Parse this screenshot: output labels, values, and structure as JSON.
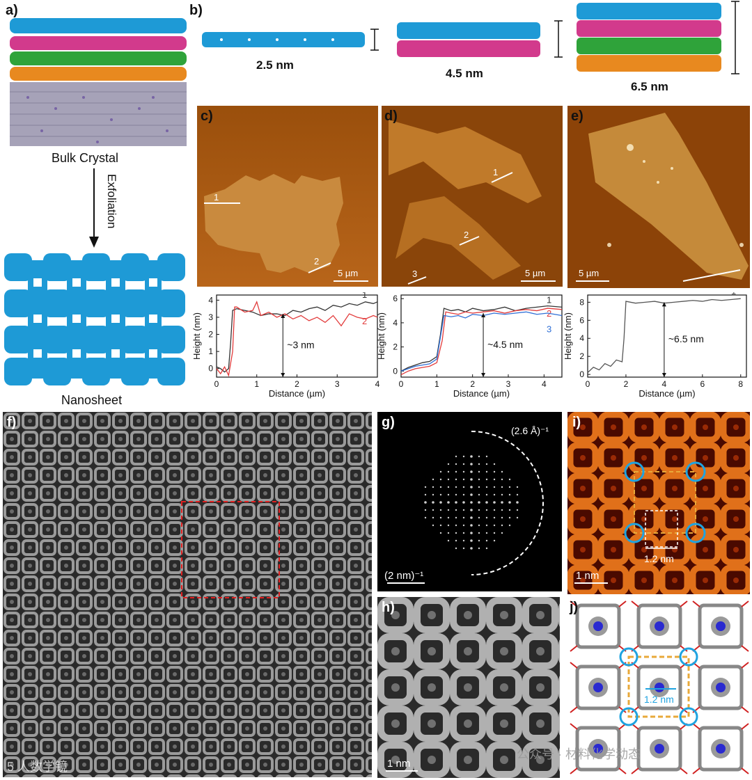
{
  "panels": {
    "a": "a)",
    "b": "b)",
    "c": "c)",
    "d": "d)",
    "e": "e)",
    "f": "f)",
    "g": "g)",
    "h": "h)",
    "i": "i)",
    "j": "j)"
  },
  "panel_a": {
    "bulk_label": "Bulk Crystal",
    "arrow_label": "Exfoliation",
    "nanosheet_label": "Nanosheet"
  },
  "panel_b": {
    "thickness_1": "2.5 nm",
    "thickness_2": "4.5 nm",
    "thickness_3": "6.5 nm"
  },
  "colors": {
    "blue": "#1e9ad6",
    "magenta": "#d23a8c",
    "green": "#2fa33a",
    "orange": "#e8891f",
    "red_line": "#e23b3b",
    "blue_line": "#2f6fd6",
    "circle": "#1fa3e0",
    "dash_yellow": "#e8a93a"
  },
  "afm": {
    "c": {
      "scale": "5 µm",
      "line1": "1",
      "line2": "2"
    },
    "d": {
      "scale": "5 µm",
      "line1": "1",
      "line2": "2",
      "line3": "3"
    },
    "e": {
      "scale": "5 µm"
    }
  },
  "chart_data": [
    {
      "type": "line",
      "panel": "c",
      "xlabel": "Distance (µm)",
      "ylabel": "Height (nm)",
      "xlim": [
        0,
        4
      ],
      "ylim": [
        -0.5,
        4.3
      ],
      "xticks": [
        "0",
        "1",
        "2",
        "3",
        "4"
      ],
      "yticks": [
        "0",
        "1",
        "2",
        "3",
        "4"
      ],
      "annotation": "~3 nm",
      "series": [
        {
          "name": "1",
          "color": "#333333",
          "x": [
            0,
            0.1,
            0.2,
            0.3,
            0.35,
            0.4,
            0.5,
            0.7,
            0.9,
            1.1,
            1.3,
            1.5,
            1.7,
            1.9,
            2.1,
            2.3,
            2.5,
            2.7,
            2.9,
            3.1,
            3.3,
            3.5,
            3.7,
            3.9,
            4.0
          ],
          "y": [
            0.1,
            0.0,
            -0.2,
            0.0,
            1.5,
            3.4,
            3.5,
            3.4,
            3.3,
            3.1,
            3.2,
            3.2,
            3.1,
            3.4,
            3.3,
            3.5,
            3.6,
            3.4,
            3.7,
            3.6,
            3.8,
            3.7,
            3.9,
            3.8,
            3.9
          ]
        },
        {
          "name": "2",
          "color": "#e23b3b",
          "x": [
            0,
            0.1,
            0.2,
            0.3,
            0.4,
            0.45,
            0.5,
            0.7,
            0.9,
            1.0,
            1.1,
            1.3,
            1.5,
            1.7,
            1.9,
            2.1,
            2.3,
            2.5,
            2.7,
            2.9,
            3.1,
            3.3,
            3.5,
            3.7,
            3.9,
            4.0
          ],
          "y": [
            0.0,
            -0.3,
            0.1,
            -0.4,
            1.0,
            3.6,
            3.6,
            3.3,
            3.4,
            3.9,
            3.1,
            3.3,
            3.0,
            3.2,
            2.9,
            3.1,
            2.8,
            3.0,
            2.7,
            3.1,
            2.5,
            3.2,
            3.0,
            2.9,
            3.1,
            3.0
          ]
        }
      ],
      "series_labels": [
        "1",
        "2"
      ]
    },
    {
      "type": "line",
      "panel": "d",
      "xlabel": "Distance (µm)",
      "ylabel": "Height (nm)",
      "xlim": [
        0,
        4.5
      ],
      "ylim": [
        -0.5,
        6.3
      ],
      "xticks": [
        "0",
        "1",
        "2",
        "3",
        "4"
      ],
      "yticks": [
        "0",
        "2",
        "4",
        "6"
      ],
      "annotation": "~4.5 nm",
      "series": [
        {
          "name": "1",
          "color": "#333333",
          "x": [
            0,
            0.2,
            0.4,
            0.6,
            0.8,
            1.0,
            1.1,
            1.2,
            1.4,
            1.6,
            1.8,
            2.0,
            2.3,
            2.6,
            2.9,
            3.2,
            3.5,
            3.8,
            4.1,
            4.5
          ],
          "y": [
            0.0,
            0.3,
            0.5,
            0.7,
            0.8,
            1.2,
            3.0,
            5.2,
            5.0,
            5.1,
            4.9,
            5.2,
            5.0,
            5.1,
            5.3,
            5.0,
            5.2,
            5.3,
            5.4,
            5.3
          ]
        },
        {
          "name": "2",
          "color": "#e23b3b",
          "x": [
            0,
            0.2,
            0.4,
            0.6,
            0.8,
            1.0,
            1.15,
            1.25,
            1.4,
            1.6,
            1.8,
            2.0,
            2.3,
            2.6,
            2.9,
            3.2,
            3.5,
            3.8,
            4.1,
            4.5
          ],
          "y": [
            -0.3,
            0.0,
            0.2,
            0.3,
            0.4,
            0.7,
            2.5,
            4.9,
            4.8,
            4.7,
            4.9,
            4.8,
            4.9,
            5.0,
            4.8,
            5.0,
            5.1,
            5.0,
            5.2,
            5.1
          ]
        },
        {
          "name": "3",
          "color": "#2f6fd6",
          "x": [
            0,
            0.2,
            0.4,
            0.6,
            0.8,
            1.0,
            1.1,
            1.2,
            1.4,
            1.6,
            1.8,
            2.0,
            2.3,
            2.6,
            2.9,
            3.2,
            3.5,
            3.8,
            4.1,
            4.5
          ],
          "y": [
            0.0,
            0.2,
            0.4,
            0.5,
            0.6,
            1.0,
            2.8,
            4.6,
            4.5,
            4.6,
            4.4,
            4.7,
            4.6,
            4.8,
            4.7,
            4.8,
            4.9,
            4.7,
            4.8,
            4.6
          ]
        }
      ],
      "series_labels": [
        "1",
        "2",
        "3"
      ]
    },
    {
      "type": "line",
      "panel": "e",
      "xlabel": "Distance (µm)",
      "ylabel": "Height (nm)",
      "xlim": [
        0,
        8.3
      ],
      "ylim": [
        -0.3,
        8.8
      ],
      "xticks": [
        "0",
        "2",
        "4",
        "6",
        "8"
      ],
      "yticks": [
        "0",
        "2",
        "4",
        "6",
        "8"
      ],
      "annotation": "~6.5 nm",
      "series": [
        {
          "name": "1",
          "color": "#555555",
          "x": [
            0,
            0.3,
            0.6,
            0.9,
            1.2,
            1.5,
            1.8,
            1.9,
            2.0,
            2.5,
            3.0,
            3.5,
            4.0,
            4.5,
            5.0,
            5.5,
            6.0,
            6.5,
            7.0,
            7.5,
            8.0
          ],
          "y": [
            0.2,
            0.8,
            0.5,
            1.2,
            0.9,
            1.6,
            1.4,
            4.0,
            8.1,
            7.9,
            8.0,
            8.1,
            7.9,
            8.0,
            8.1,
            8.2,
            8.1,
            8.3,
            8.2,
            8.3,
            8.4
          ]
        }
      ],
      "series_labels": [
        "1"
      ]
    }
  ],
  "fft": {
    "outer_label": "(2.6 Å)⁻¹",
    "scale": "(2 nm)⁻¹"
  },
  "panel_i": {
    "spacing": "1.2 nm",
    "scale": "1 nm"
  },
  "panel_h": {
    "scale": "1 nm"
  },
  "panel_j": {
    "spacing": "1.2 nm"
  },
  "watermarks": {
    "left": "5 人数学镜",
    "right": "公众号 · 材料化学动态"
  }
}
